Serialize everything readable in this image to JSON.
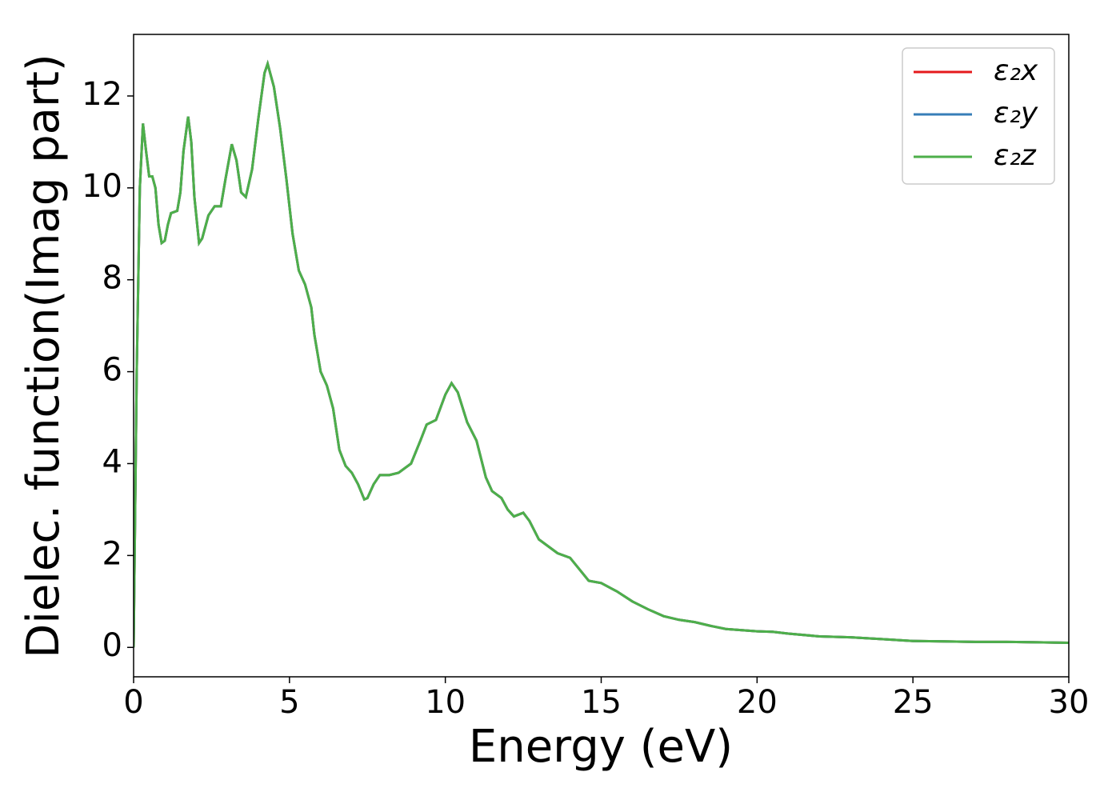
{
  "chart_data": {
    "type": "line",
    "xlabel": "Energy (eV)",
    "ylabel": "Dielec. function(Imag part)",
    "x": [
      0,
      0.1,
      0.2,
      0.3,
      0.4,
      0.5,
      0.6,
      0.7,
      0.8,
      0.9,
      1.0,
      1.1,
      1.2,
      1.4,
      1.5,
      1.6,
      1.75,
      1.85,
      1.95,
      2.1,
      2.2,
      2.4,
      2.6,
      2.8,
      2.95,
      3.15,
      3.3,
      3.45,
      3.6,
      3.8,
      4.0,
      4.2,
      4.3,
      4.5,
      4.7,
      4.9,
      5.1,
      5.3,
      5.5,
      5.7,
      5.8,
      6.0,
      6.2,
      6.4,
      6.6,
      6.8,
      7.0,
      7.2,
      7.4,
      7.5,
      7.7,
      7.9,
      8.2,
      8.5,
      8.9,
      9.2,
      9.4,
      9.7,
      10.0,
      10.2,
      10.4,
      10.7,
      11.0,
      11.3,
      11.5,
      11.8,
      12.0,
      12.2,
      12.5,
      12.7,
      13.0,
      13.3,
      13.6,
      14.0,
      14.3,
      14.6,
      15.0,
      15.5,
      16.0,
      16.5,
      17.0,
      17.5,
      18.0,
      18.5,
      19.0,
      20.0,
      20.5,
      21.0,
      22.0,
      23.0,
      24.0,
      25.0,
      26.0,
      27.0,
      28.0,
      29.0,
      30.0
    ],
    "series": [
      {
        "name": "ε₂x",
        "color": "#e41a1c",
        "values": [
          0,
          6,
          10,
          11.4,
          10.8,
          10.25,
          10.25,
          10.0,
          9.2,
          8.8,
          8.85,
          9.2,
          9.45,
          9.5,
          9.9,
          10.8,
          11.55,
          11.0,
          9.8,
          8.8,
          8.9,
          9.4,
          9.6,
          9.6,
          10.2,
          10.95,
          10.6,
          9.9,
          9.8,
          10.4,
          11.5,
          12.5,
          12.7,
          12.2,
          11.3,
          10.2,
          9.0,
          8.2,
          7.9,
          7.4,
          6.8,
          6.0,
          5.7,
          5.2,
          4.3,
          3.95,
          3.8,
          3.55,
          3.22,
          3.25,
          3.55,
          3.75,
          3.75,
          3.8,
          4.0,
          4.5,
          4.85,
          4.95,
          5.5,
          5.75,
          5.55,
          4.9,
          4.5,
          3.7,
          3.4,
          3.25,
          3.0,
          2.85,
          2.93,
          2.75,
          2.35,
          2.2,
          2.05,
          1.95,
          1.7,
          1.45,
          1.4,
          1.22,
          1.0,
          0.83,
          0.68,
          0.6,
          0.55,
          0.47,
          0.4,
          0.35,
          0.34,
          0.3,
          0.24,
          0.22,
          0.18,
          0.14,
          0.13,
          0.12,
          0.12,
          0.11,
          0.1
        ]
      },
      {
        "name": "ε₂y",
        "color": "#377eb8",
        "values": [
          0,
          6,
          10,
          11.4,
          10.8,
          10.25,
          10.25,
          10.0,
          9.2,
          8.8,
          8.85,
          9.2,
          9.45,
          9.5,
          9.9,
          10.8,
          11.55,
          11.0,
          9.8,
          8.8,
          8.9,
          9.4,
          9.6,
          9.6,
          10.2,
          10.95,
          10.6,
          9.9,
          9.8,
          10.4,
          11.5,
          12.5,
          12.7,
          12.2,
          11.3,
          10.2,
          9.0,
          8.2,
          7.9,
          7.4,
          6.8,
          6.0,
          5.7,
          5.2,
          4.3,
          3.95,
          3.8,
          3.55,
          3.22,
          3.25,
          3.55,
          3.75,
          3.75,
          3.8,
          4.0,
          4.5,
          4.85,
          4.95,
          5.5,
          5.75,
          5.55,
          4.9,
          4.5,
          3.7,
          3.4,
          3.25,
          3.0,
          2.85,
          2.93,
          2.75,
          2.35,
          2.2,
          2.05,
          1.95,
          1.7,
          1.45,
          1.4,
          1.22,
          1.0,
          0.83,
          0.68,
          0.6,
          0.55,
          0.47,
          0.4,
          0.35,
          0.34,
          0.3,
          0.24,
          0.22,
          0.18,
          0.14,
          0.13,
          0.12,
          0.12,
          0.11,
          0.1
        ]
      },
      {
        "name": "ε₂z",
        "color": "#4daf4a",
        "values": [
          0,
          6,
          10,
          11.4,
          10.8,
          10.25,
          10.25,
          10.0,
          9.2,
          8.8,
          8.85,
          9.2,
          9.45,
          9.5,
          9.9,
          10.8,
          11.55,
          11.0,
          9.8,
          8.8,
          8.9,
          9.4,
          9.6,
          9.6,
          10.2,
          10.95,
          10.6,
          9.9,
          9.8,
          10.4,
          11.5,
          12.5,
          12.7,
          12.2,
          11.3,
          10.2,
          9.0,
          8.2,
          7.9,
          7.4,
          6.8,
          6.0,
          5.7,
          5.2,
          4.3,
          3.95,
          3.8,
          3.55,
          3.22,
          3.25,
          3.55,
          3.75,
          3.75,
          3.8,
          4.0,
          4.5,
          4.85,
          4.95,
          5.5,
          5.75,
          5.55,
          4.9,
          4.5,
          3.7,
          3.4,
          3.25,
          3.0,
          2.85,
          2.93,
          2.75,
          2.35,
          2.2,
          2.05,
          1.95,
          1.7,
          1.45,
          1.4,
          1.22,
          1.0,
          0.83,
          0.68,
          0.6,
          0.55,
          0.47,
          0.4,
          0.35,
          0.34,
          0.3,
          0.24,
          0.22,
          0.18,
          0.14,
          0.13,
          0.12,
          0.12,
          0.11,
          0.1
        ]
      }
    ],
    "xlim": [
      0,
      30
    ],
    "ylim": [
      -0.64,
      13.34
    ],
    "xticks": [
      0,
      5,
      10,
      15,
      20,
      25,
      30
    ],
    "yticks": [
      0,
      2,
      4,
      6,
      8,
      10,
      12
    ],
    "grid": false,
    "legend": "upper right"
  }
}
